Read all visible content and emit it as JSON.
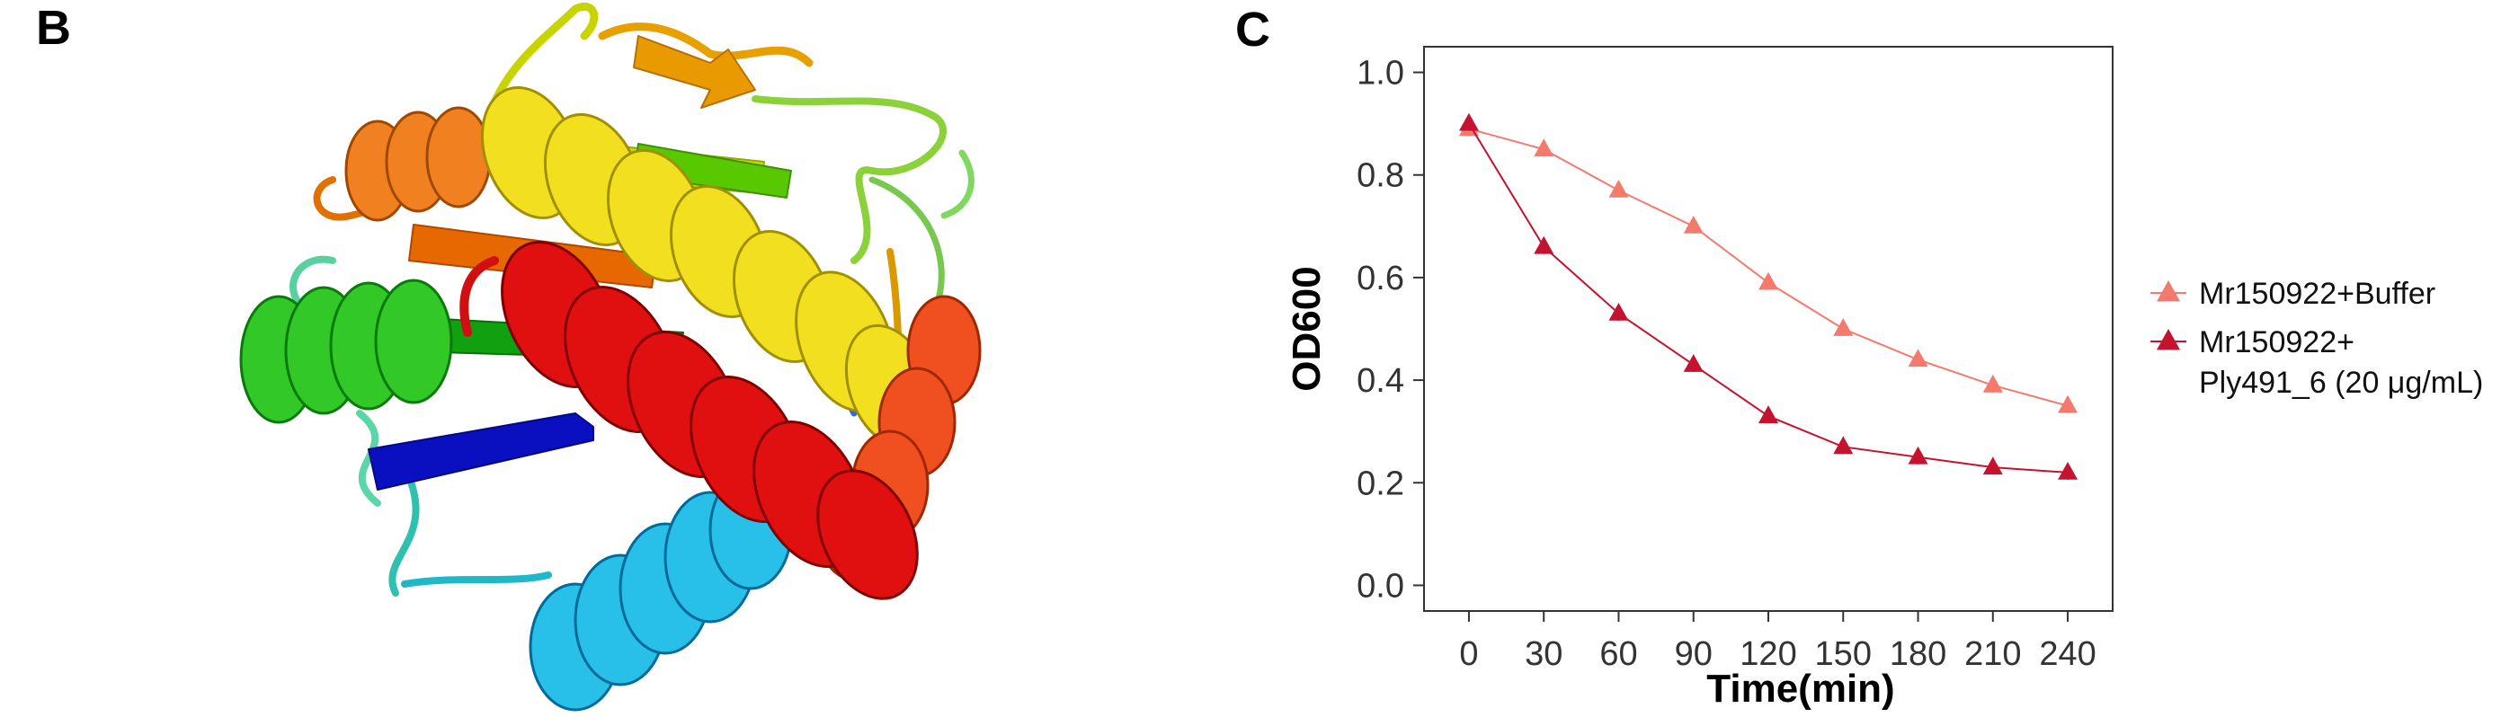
{
  "panels": {
    "left_letter": "B",
    "right_letter": "C"
  },
  "colors": {
    "buffer": "#F47A6E",
    "treated": "#C4132E"
  },
  "chart_data": {
    "type": "line",
    "title": "",
    "xlabel": "Time(min)",
    "ylabel": "OD600",
    "x": [
      0,
      30,
      60,
      90,
      120,
      150,
      180,
      210,
      240
    ],
    "xlim": [
      -18,
      258
    ],
    "ylim": [
      -0.05,
      1.05
    ],
    "yticks": [
      0.0,
      0.2,
      0.4,
      0.6,
      0.8,
      1.0
    ],
    "ytick_labels": [
      "0.0",
      "0.2",
      "0.4",
      "0.6",
      "0.8",
      "1.0"
    ],
    "xtick_labels": [
      "0",
      "30",
      "60",
      "90",
      "120",
      "150",
      "180",
      "210",
      "240"
    ],
    "grid": false,
    "legend_position": "right",
    "series": [
      {
        "name": "Mr150922+Buffer",
        "color": "#F47A6E",
        "marker": "triangle",
        "values": [
          0.89,
          0.85,
          0.77,
          0.7,
          0.59,
          0.5,
          0.44,
          0.39,
          0.35
        ]
      },
      {
        "name": "Mr150922+ Ply491_6 (20 μg/mL)",
        "legend_lines": [
          "Mr150922+",
          "Ply491_6 (20 μg/mL)"
        ],
        "color": "#C4132E",
        "marker": "triangle",
        "values": [
          0.9,
          0.66,
          0.53,
          0.43,
          0.33,
          0.27,
          0.25,
          0.23,
          0.22
        ]
      }
    ]
  }
}
